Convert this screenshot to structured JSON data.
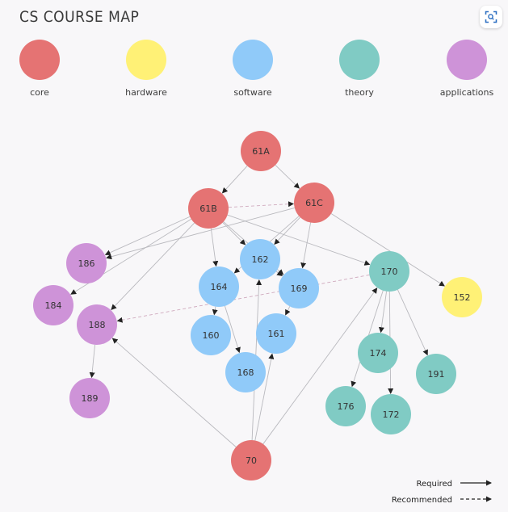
{
  "title": "CS COURSE MAP",
  "colors": {
    "core": "#e57373",
    "hardware": "#fff176",
    "software": "#90caf9",
    "theory": "#80cbc4",
    "applications": "#ce93d8",
    "edge": "#b9b9be",
    "arrow": "#222222"
  },
  "categories": [
    {
      "id": "core",
      "label": "core"
    },
    {
      "id": "hardware",
      "label": "hardware"
    },
    {
      "id": "software",
      "label": "software"
    },
    {
      "id": "theory",
      "label": "theory"
    },
    {
      "id": "applications",
      "label": "applications"
    }
  ],
  "courses": [
    {
      "id": "61A",
      "category": "core"
    },
    {
      "id": "61B",
      "category": "core"
    },
    {
      "id": "61C",
      "category": "core"
    },
    {
      "id": "70",
      "category": "core"
    },
    {
      "id": "152",
      "category": "hardware"
    },
    {
      "id": "162",
      "category": "software"
    },
    {
      "id": "164",
      "category": "software"
    },
    {
      "id": "169",
      "category": "software"
    },
    {
      "id": "160",
      "category": "software"
    },
    {
      "id": "161",
      "category": "software"
    },
    {
      "id": "168",
      "category": "software"
    },
    {
      "id": "170",
      "category": "theory"
    },
    {
      "id": "174",
      "category": "theory"
    },
    {
      "id": "191",
      "category": "theory"
    },
    {
      "id": "176",
      "category": "theory"
    },
    {
      "id": "172",
      "category": "theory"
    },
    {
      "id": "186",
      "category": "applications"
    },
    {
      "id": "184",
      "category": "applications"
    },
    {
      "id": "188",
      "category": "applications"
    },
    {
      "id": "189",
      "category": "applications"
    }
  ],
  "edges": [
    {
      "from": "61A",
      "to": "61B",
      "type": "required"
    },
    {
      "from": "61A",
      "to": "61C",
      "type": "required"
    },
    {
      "from": "61B",
      "to": "61C",
      "type": "recommended"
    },
    {
      "from": "61B",
      "to": "186",
      "type": "required"
    },
    {
      "from": "61B",
      "to": "184",
      "type": "required"
    },
    {
      "from": "61B",
      "to": "188",
      "type": "required"
    },
    {
      "from": "61B",
      "to": "164",
      "type": "required"
    },
    {
      "from": "61B",
      "to": "162",
      "type": "required"
    },
    {
      "from": "61B",
      "to": "169",
      "type": "required"
    },
    {
      "from": "61B",
      "to": "170",
      "type": "required"
    },
    {
      "from": "61C",
      "to": "162",
      "type": "required"
    },
    {
      "from": "61C",
      "to": "164",
      "type": "required"
    },
    {
      "from": "61C",
      "to": "169",
      "type": "required"
    },
    {
      "from": "61C",
      "to": "186",
      "type": "required"
    },
    {
      "from": "61C",
      "to": "152",
      "type": "required"
    },
    {
      "from": "162",
      "to": "169",
      "type": "required"
    },
    {
      "from": "164",
      "to": "160",
      "type": "required"
    },
    {
      "from": "164",
      "to": "168",
      "type": "required"
    },
    {
      "from": "169",
      "to": "161",
      "type": "required"
    },
    {
      "from": "170",
      "to": "188",
      "type": "recommended"
    },
    {
      "from": "170",
      "to": "174",
      "type": "required"
    },
    {
      "from": "170",
      "to": "176",
      "type": "required"
    },
    {
      "from": "170",
      "to": "172",
      "type": "required"
    },
    {
      "from": "170",
      "to": "191",
      "type": "required"
    },
    {
      "from": "188",
      "to": "189",
      "type": "required"
    },
    {
      "from": "70",
      "to": "188",
      "type": "required"
    },
    {
      "from": "70",
      "to": "162",
      "type": "required"
    },
    {
      "from": "70",
      "to": "161",
      "type": "required"
    },
    {
      "from": "70",
      "to": "170",
      "type": "required"
    }
  ],
  "key": {
    "required": "Required",
    "recommended": "Recommended"
  },
  "fullscreen_icon": "fullscreen-icon"
}
